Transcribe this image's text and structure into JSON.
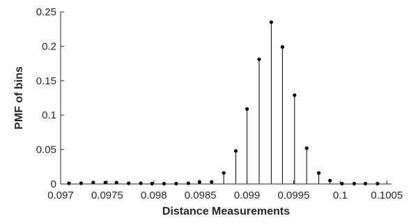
{
  "chart_data": {
    "type": "stem",
    "title": "",
    "xlabel": "Distance Measurements",
    "ylabel": "PMF of bins",
    "xlim": [
      0.097,
      0.10055
    ],
    "ylim": [
      0,
      0.25
    ],
    "xticks": [
      0.097,
      0.0975,
      0.098,
      0.0985,
      0.099,
      0.0995,
      0.1,
      0.1005
    ],
    "xtick_labels": [
      "0.097",
      "0.0975",
      "0.098",
      "0.0985",
      "0.099",
      "0.0995",
      "0.1",
      "0.1005"
    ],
    "yticks": [
      0,
      0.05,
      0.1,
      0.15,
      0.2,
      0.25
    ],
    "ytick_labels": [
      "0",
      "0.05",
      "0.1",
      "0.15",
      "0.2",
      "0.25"
    ],
    "grid": false,
    "box": false,
    "color": "#000000",
    "series": [
      {
        "x": [
          0.09709,
          0.09722,
          0.09735,
          0.09748,
          0.0976,
          0.09773,
          0.09786,
          0.09798,
          0.09811,
          0.09824,
          0.09837,
          0.09849,
          0.09862,
          0.09875,
          0.09888,
          0.099,
          0.09913,
          0.09926,
          0.09938,
          0.09951,
          0.09964,
          0.09977,
          0.09989,
          0.10002,
          0.10015,
          0.10027,
          0.1004
        ],
        "y": [
          0.001,
          0.001,
          0.002,
          0.002,
          0.002,
          0.001,
          0.001,
          0.0005,
          0.0005,
          0.0005,
          0.001,
          0.003,
          0.003,
          0.016,
          0.048,
          0.109,
          0.181,
          0.235,
          0.199,
          0.129,
          0.052,
          0.016,
          0.005,
          0.0005,
          0.0005,
          0.0005,
          0.0005
        ]
      }
    ]
  }
}
